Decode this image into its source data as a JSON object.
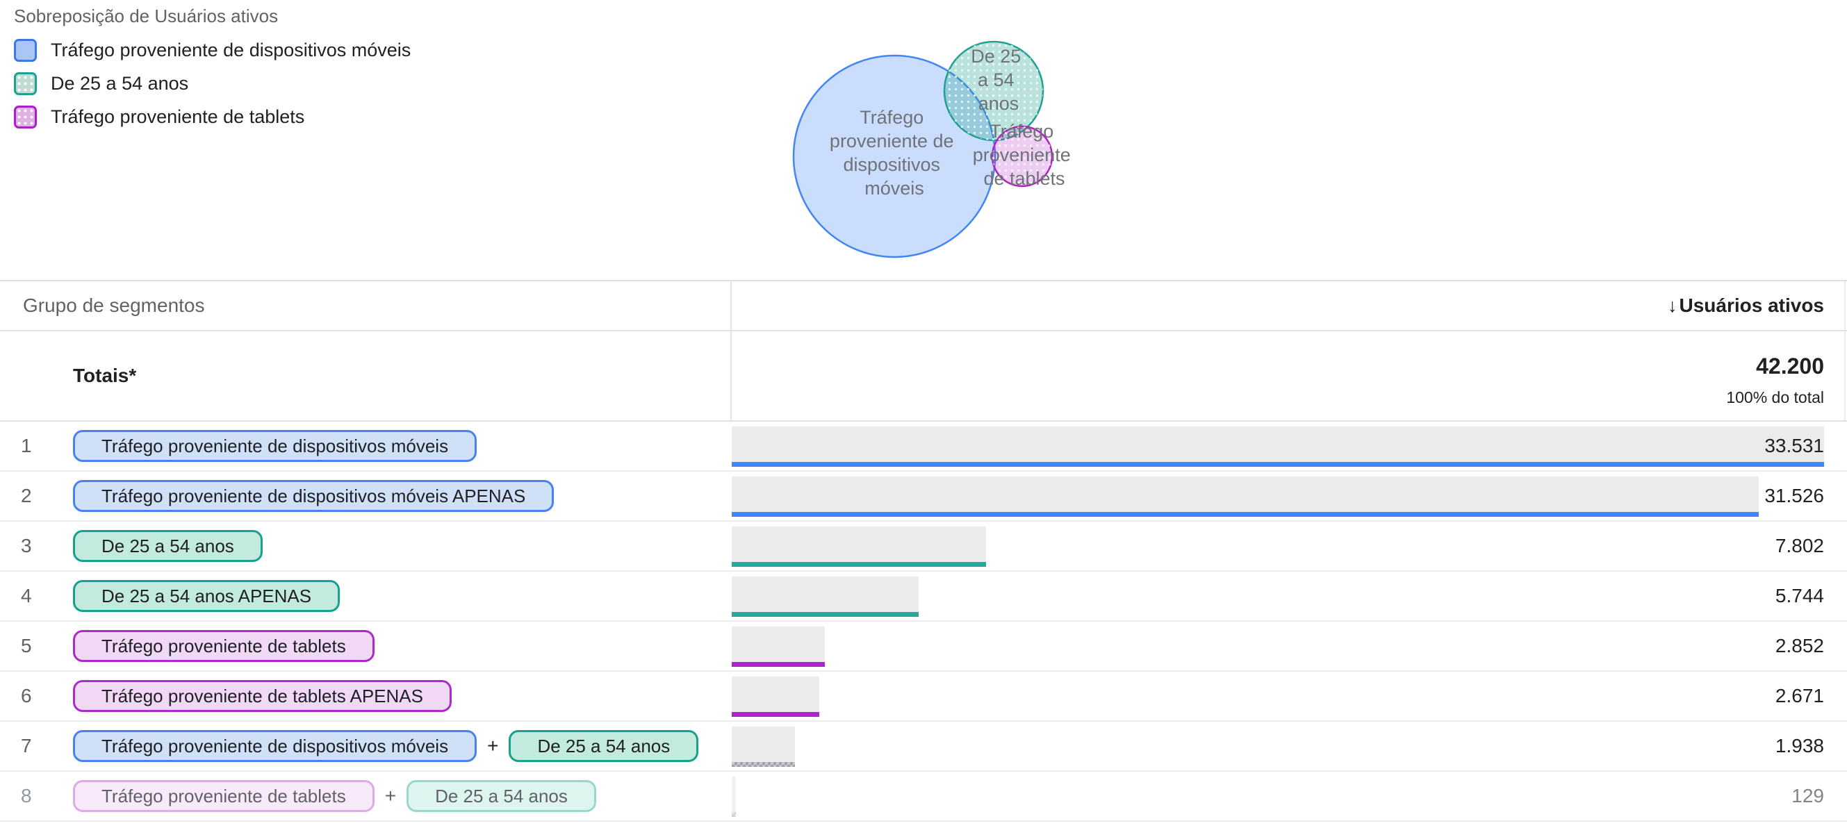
{
  "colors": {
    "mobile_blue": "#4285f4",
    "age_teal": "#1fa191",
    "tablet_purple": "#ab2dc8",
    "overlap_gray": "#9aa0a6",
    "bar_fill": "#ebebeb"
  },
  "legend": {
    "title": "Sobreposição de Usuários ativos",
    "items": [
      {
        "label": "Tráfego proveniente de dispositivos móveis"
      },
      {
        "label": "De 25 a 54 anos"
      },
      {
        "label": "Tráfego proveniente de tablets"
      }
    ]
  },
  "venn": {
    "mobile": {
      "lines": [
        "Tráfego",
        "proveniente de",
        "dispositivos",
        "móveis"
      ]
    },
    "age": {
      "lines": [
        "De 25",
        "a 54",
        "anos"
      ]
    },
    "tablets": {
      "lines": [
        "Tráfego",
        "proveniente",
        "de tablets"
      ]
    }
  },
  "table": {
    "header": {
      "segment_column": "Grupo de segmentos",
      "metric_column": "Usuários ativos",
      "sort_arrow": "↓"
    },
    "totals": {
      "label": "Totais*",
      "value": "42.200",
      "subtext": "100% do total"
    },
    "plus": "+",
    "rows": [
      {
        "index": "1",
        "segments": [
          "Tráfego proveniente de dispositivos móveis"
        ],
        "value": "33.531",
        "bar_pct": 100
      },
      {
        "index": "2",
        "segments": [
          "Tráfego proveniente de dispositivos móveis APENAS"
        ],
        "value": "31.526",
        "bar_pct": 94.0
      },
      {
        "index": "3",
        "segments": [
          "De 25 a 54 anos"
        ],
        "value": "7.802",
        "bar_pct": 23.3
      },
      {
        "index": "4",
        "segments": [
          "De 25 a 54 anos APENAS"
        ],
        "value": "5.744",
        "bar_pct": 17.1
      },
      {
        "index": "5",
        "segments": [
          "Tráfego proveniente de tablets"
        ],
        "value": "2.852",
        "bar_pct": 8.5
      },
      {
        "index": "6",
        "segments": [
          "Tráfego proveniente de tablets APENAS"
        ],
        "value": "2.671",
        "bar_pct": 8.0
      },
      {
        "index": "7",
        "segments": [
          "Tráfego proveniente de dispositivos móveis",
          "De 25 a 54 anos"
        ],
        "value": "1.938",
        "bar_pct": 5.8
      },
      {
        "index": "8",
        "segments": [
          "Tráfego proveniente de tablets",
          "De 25 a 54 anos"
        ],
        "value": "129",
        "bar_pct": 0.4
      }
    ]
  },
  "chart_data": {
    "type": "venn",
    "title": "Sobreposição de Usuários ativos",
    "metric": "Usuários ativos",
    "total": {
      "label": "Totais*",
      "value": 42200,
      "note": "100% do total"
    },
    "sets": [
      {
        "label": "Tráfego proveniente de dispositivos móveis",
        "value": 33531
      },
      {
        "label": "Tráfego proveniente de dispositivos móveis APENAS",
        "value": 31526
      },
      {
        "label": "De 25 a 54 anos",
        "value": 7802
      },
      {
        "label": "De 25 a 54 anos APENAS",
        "value": 5744
      },
      {
        "label": "Tráfego proveniente de tablets",
        "value": 2852
      },
      {
        "label": "Tráfego proveniente de tablets APENAS",
        "value": 2671
      },
      {
        "label": "Tráfego proveniente de dispositivos móveis + De 25 a 54 anos",
        "value": 1938
      },
      {
        "label": "Tráfego proveniente de tablets + De 25 a 54 anos",
        "value": 129
      }
    ]
  }
}
